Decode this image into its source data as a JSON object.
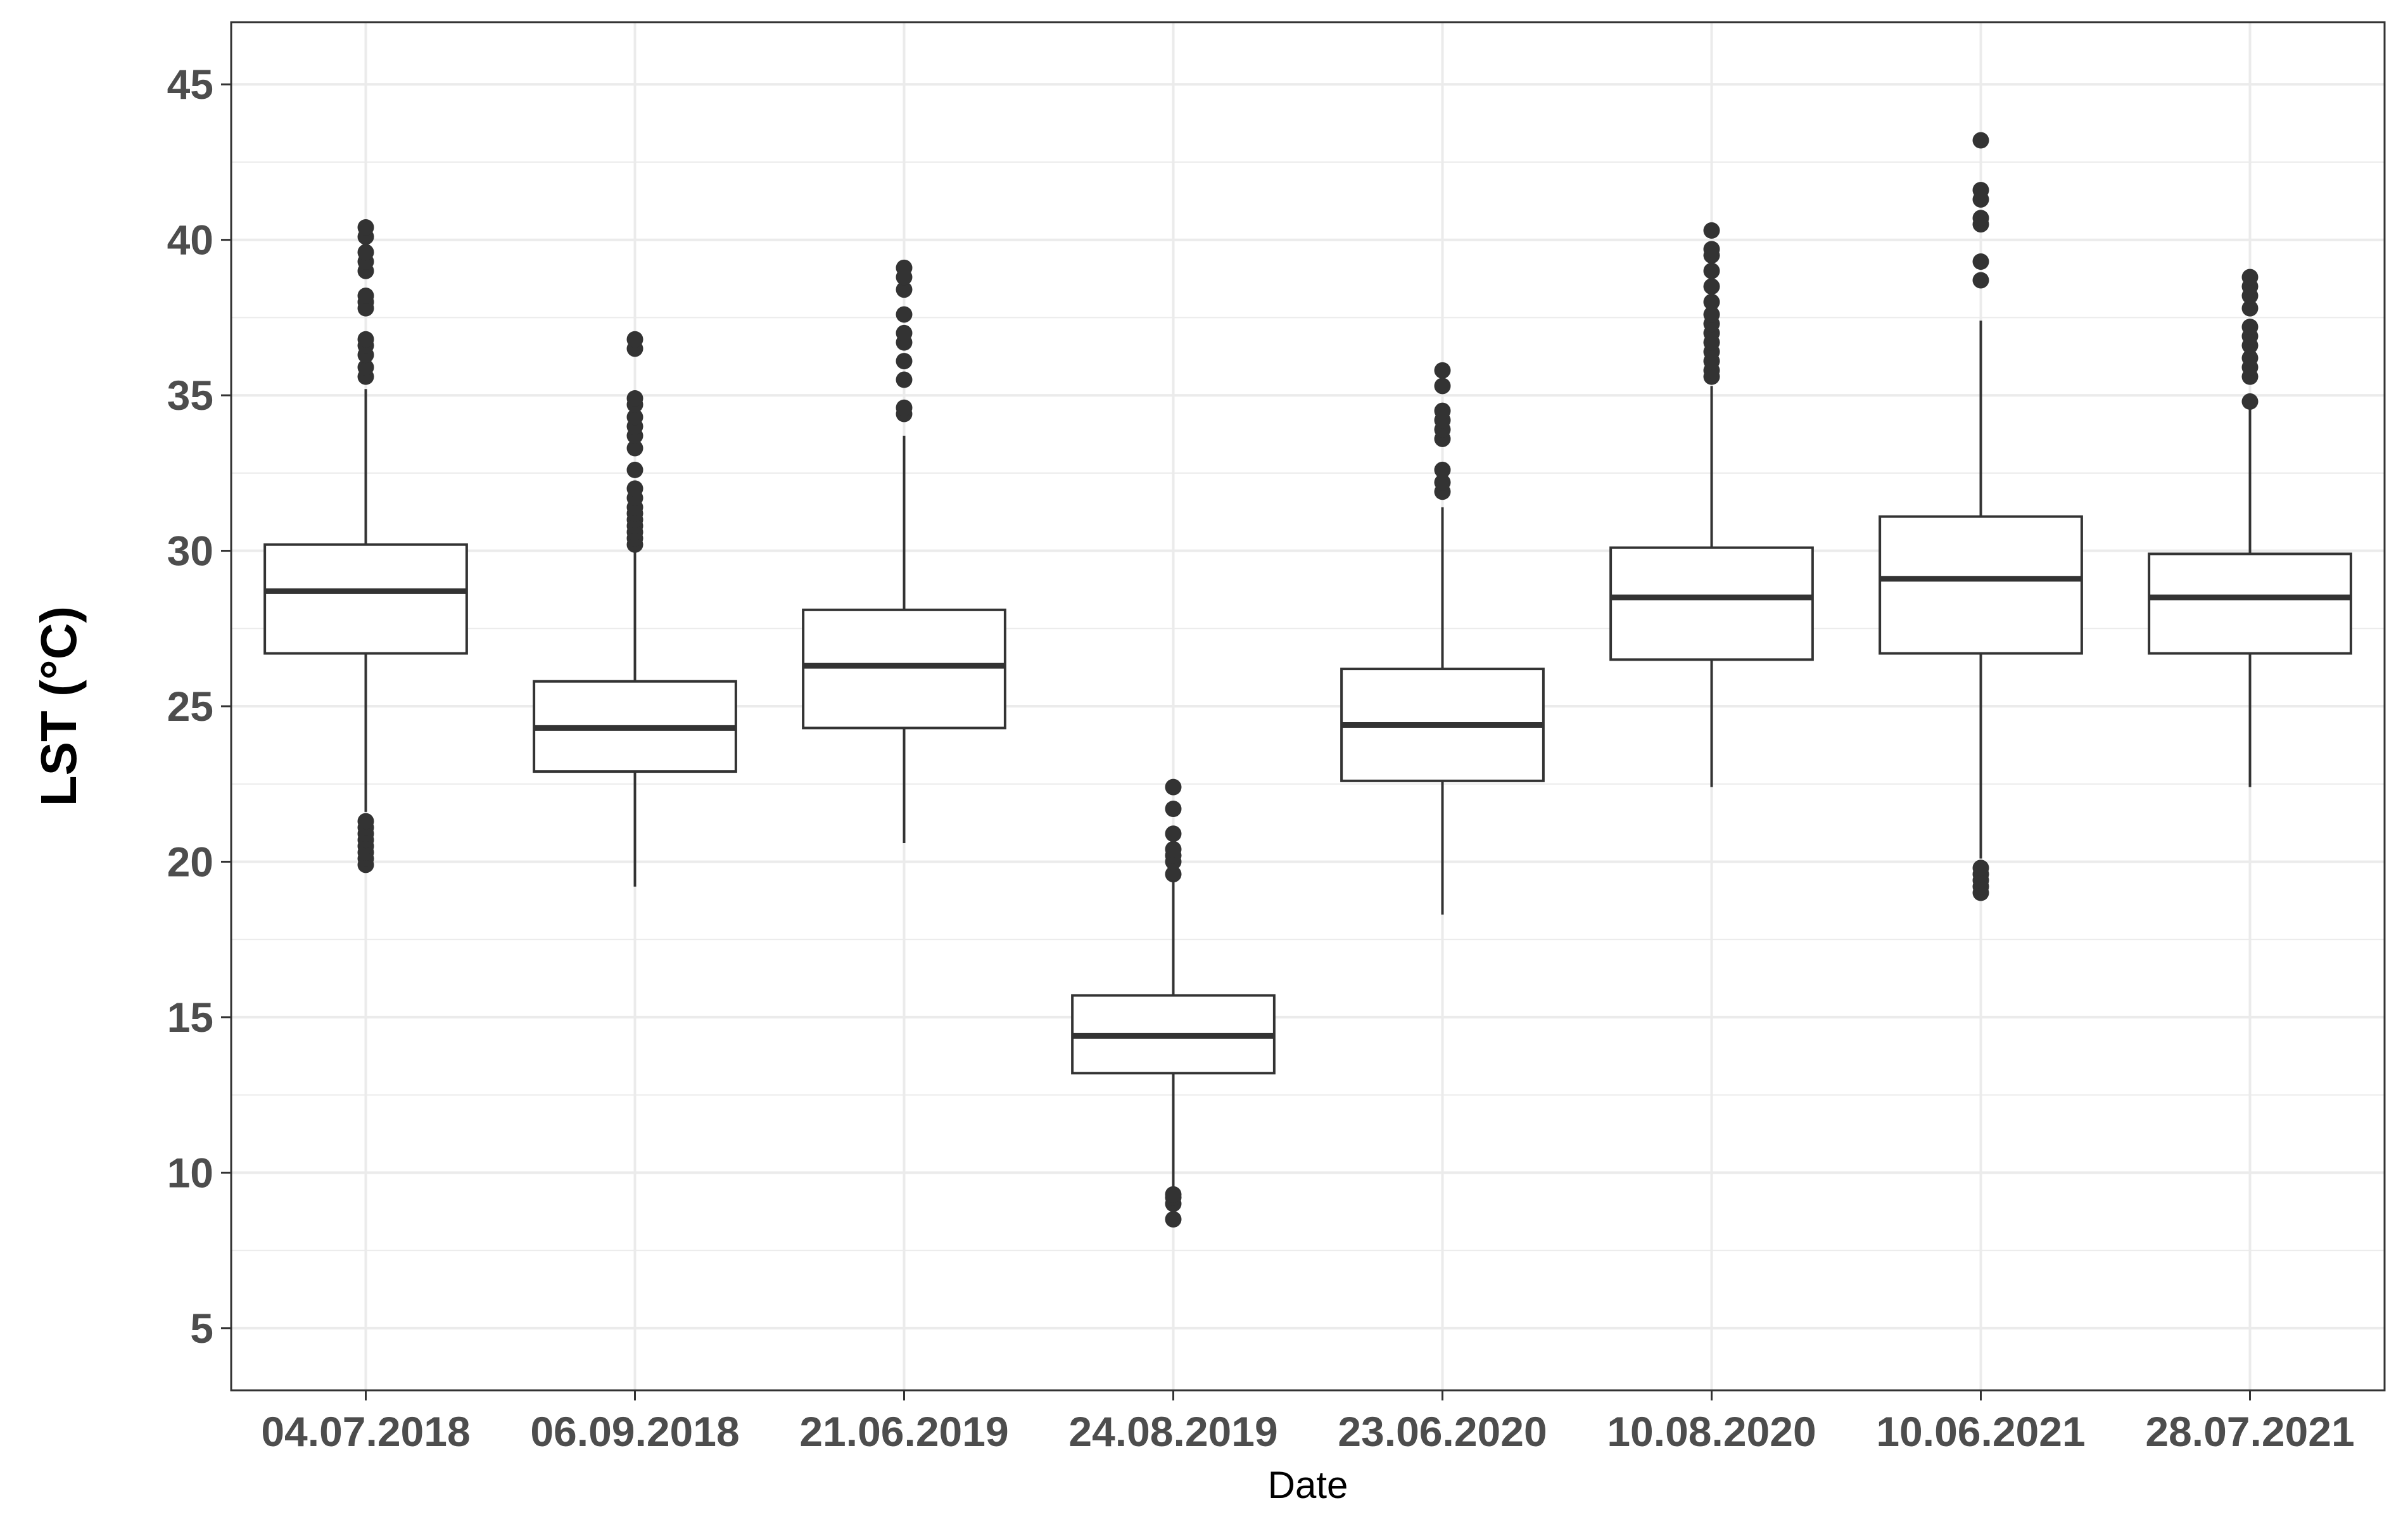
{
  "chart_data": {
    "type": "boxplot",
    "title": "",
    "xlabel": "Date",
    "ylabel": "LST (°C)",
    "ylim": [
      3,
      47
    ],
    "yticks": [
      5,
      10,
      15,
      20,
      25,
      30,
      35,
      40,
      45
    ],
    "grid": true,
    "legend": "none",
    "colors": {
      "box_stroke": "#333333",
      "box_fill": "#ffffff",
      "grid": "#ebebeb",
      "panel_border": "#333333",
      "tick_text": "#4d4d4d"
    },
    "categories": [
      "04.07.2018",
      "06.09.2018",
      "21.06.2019",
      "24.08.2019",
      "23.06.2020",
      "10.08.2020",
      "10.06.2021",
      "28.07.2021"
    ],
    "boxes": [
      {
        "category": "04.07.2018",
        "whisker_low": 21.6,
        "q1": 26.7,
        "median": 28.7,
        "q3": 30.2,
        "whisker_high": 35.2,
        "outliers": [
          19.9,
          20.1,
          20.3,
          20.5,
          20.7,
          20.9,
          21.1,
          21.3,
          35.6,
          35.9,
          36.3,
          36.6,
          36.8,
          37.8,
          38.0,
          38.2,
          39.0,
          39.3,
          39.6,
          40.1,
          40.4
        ]
      },
      {
        "category": "06.09.2018",
        "whisker_low": 19.2,
        "q1": 22.9,
        "median": 24.3,
        "q3": 25.8,
        "whisker_high": 30.0,
        "outliers": [
          30.2,
          30.4,
          30.6,
          30.8,
          31.0,
          31.2,
          31.4,
          31.7,
          32.0,
          32.6,
          33.3,
          33.7,
          34.0,
          34.3,
          34.7,
          34.9,
          36.5,
          36.8
        ]
      },
      {
        "category": "21.06.2019",
        "whisker_low": 20.6,
        "q1": 24.3,
        "median": 26.3,
        "q3": 28.1,
        "whisker_high": 33.7,
        "outliers": [
          34.4,
          34.6,
          35.5,
          36.1,
          36.7,
          37.0,
          37.6,
          38.4,
          38.8,
          39.1
        ]
      },
      {
        "category": "24.08.2019",
        "whisker_low": 9.5,
        "q1": 13.2,
        "median": 14.4,
        "q3": 15.7,
        "whisker_high": 19.4,
        "outliers": [
          8.5,
          9.0,
          9.2,
          9.3,
          19.6,
          20.0,
          20.2,
          20.4,
          20.9,
          21.7,
          22.4
        ]
      },
      {
        "category": "23.06.2020",
        "whisker_low": 18.3,
        "q1": 22.6,
        "median": 24.4,
        "q3": 26.2,
        "whisker_high": 31.4,
        "outliers": [
          31.9,
          32.2,
          32.6,
          33.6,
          33.9,
          34.2,
          34.5,
          35.3,
          35.8
        ]
      },
      {
        "category": "10.08.2020",
        "whisker_low": 22.4,
        "q1": 26.5,
        "median": 28.5,
        "q3": 30.1,
        "whisker_high": 35.3,
        "outliers": [
          35.6,
          35.8,
          36.1,
          36.4,
          36.7,
          37.0,
          37.3,
          37.6,
          38.0,
          38.5,
          39.0,
          39.5,
          39.7,
          40.3
        ]
      },
      {
        "category": "10.06.2021",
        "whisker_low": 20.1,
        "q1": 26.7,
        "median": 29.1,
        "q3": 31.1,
        "whisker_high": 37.4,
        "outliers": [
          19.0,
          19.2,
          19.4,
          19.6,
          19.8,
          38.7,
          39.3,
          40.5,
          40.7,
          41.3,
          41.6,
          43.2
        ]
      },
      {
        "category": "28.07.2021",
        "whisker_low": 22.4,
        "q1": 26.7,
        "median": 28.5,
        "q3": 29.9,
        "whisker_high": 34.6,
        "outliers": [
          34.8,
          35.6,
          35.9,
          36.2,
          36.6,
          36.9,
          37.2,
          37.8,
          38.2,
          38.5,
          38.8
        ]
      }
    ]
  }
}
